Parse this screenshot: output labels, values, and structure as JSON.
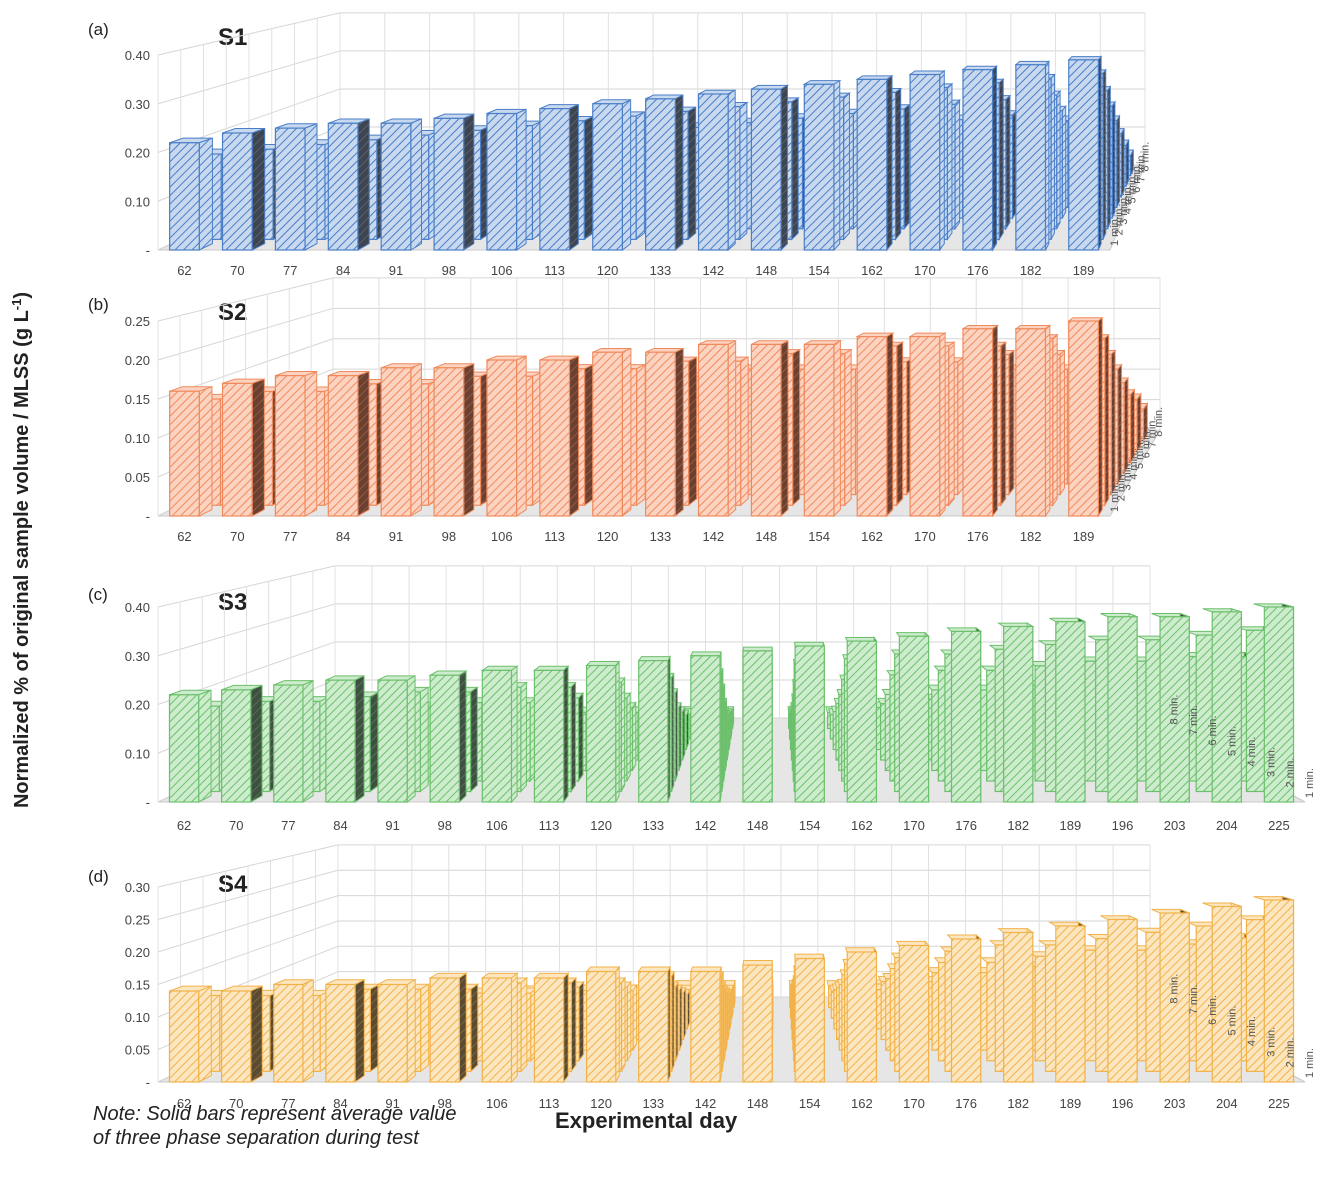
{
  "figure": {
    "ylabel": "Normalized % of original sample volume / MLSS (g L-1)",
    "ylabel_main": "Normalized % of original sample volume / MLSS (g L",
    "ylabel_sup": "-1",
    "ylabel_close": ")",
    "xlabel": "Experimental day",
    "note": "Note: Solid bars represent average value of three phase separation during test",
    "note_line1": "Note: Solid bars represent average value",
    "note_line2": "of three phase separation during test"
  },
  "chart_data": [
    {
      "type": "bar",
      "panel": "(a)",
      "title": "S1",
      "color": "#4a7fc8",
      "dark_color": "#3e4550",
      "light_color": "#c7d8ef",
      "categories": [
        "62",
        "70",
        "77",
        "84",
        "91",
        "98",
        "106",
        "113",
        "120",
        "133",
        "142",
        "148",
        "154",
        "162",
        "170",
        "176",
        "182",
        "189"
      ],
      "yticks": [
        "-",
        "0.10",
        "0.20",
        "0.30",
        "0.40"
      ],
      "ylim": [
        0,
        0.4
      ],
      "depth_labels": [
        "1 min.",
        "2 min.",
        "3 min.",
        "4 min.",
        "5 min.",
        "6 min.",
        "7 min.",
        "8 min."
      ],
      "series": [
        {
          "name": "1 min.",
          "values": [
            0.22,
            0.24,
            0.25,
            0.26,
            0.26,
            0.27,
            0.28,
            0.29,
            0.3,
            0.31,
            0.32,
            0.33,
            0.34,
            0.35,
            0.36,
            0.37,
            0.38,
            0.39
          ]
        },
        {
          "name": "2 min.",
          "values": [
            0.18,
            0.19,
            0.2,
            0.21,
            0.22,
            0.23,
            0.24,
            0.25,
            0.26,
            0.27,
            0.28,
            0.29,
            0.3,
            0.31,
            0.32,
            0.33,
            0.34,
            0.35
          ]
        },
        {
          "name": "3 min.",
          "values": [
            0.14,
            0.15,
            0.15,
            0.16,
            0.17,
            0.18,
            0.19,
            0.2,
            0.21,
            0.22,
            0.23,
            0.24,
            0.25,
            0.26,
            0.27,
            0.28,
            0.29,
            0.3
          ]
        },
        {
          "name": "4 min.",
          "values": [
            0.1,
            0.11,
            0.12,
            0.13,
            0.13,
            0.14,
            0.15,
            0.16,
            0.17,
            0.18,
            0.19,
            0.19,
            0.2,
            0.21,
            0.22,
            0.23,
            0.24,
            0.25
          ]
        },
        {
          "name": "5 min.",
          "values": [
            0.08,
            0.08,
            0.09,
            0.1,
            0.1,
            0.11,
            0.12,
            0.12,
            0.13,
            0.14,
            0.15,
            0.15,
            0.16,
            0.17,
            0.18,
            0.19,
            0.2,
            0.2
          ]
        },
        {
          "name": "6 min.",
          "values": [
            0.06,
            0.06,
            0.07,
            0.07,
            0.08,
            0.08,
            0.09,
            0.09,
            0.1,
            0.1,
            0.11,
            0.11,
            0.12,
            0.13,
            0.14,
            0.14,
            0.15,
            0.15
          ]
        },
        {
          "name": "7 min.",
          "values": [
            0.04,
            0.04,
            0.05,
            0.05,
            0.05,
            0.06,
            0.06,
            0.06,
            0.07,
            0.07,
            0.07,
            0.08,
            0.08,
            0.09,
            0.09,
            0.1,
            0.1,
            0.1
          ]
        },
        {
          "name": "8 min.",
          "values": [
            0.03,
            0.03,
            0.03,
            0.03,
            0.03,
            0.04,
            0.04,
            0.04,
            0.04,
            0.04,
            0.04,
            0.05,
            0.05,
            0.05,
            0.05,
            0.05,
            0.05,
            0.05
          ]
        }
      ]
    },
    {
      "type": "bar",
      "panel": "(b)",
      "title": "S2",
      "color": "#f08a5d",
      "dark_color": "#6a4030",
      "light_color": "#fbd3c0",
      "categories": [
        "62",
        "70",
        "77",
        "84",
        "91",
        "98",
        "106",
        "113",
        "120",
        "133",
        "142",
        "148",
        "154",
        "162",
        "170",
        "176",
        "182",
        "189"
      ],
      "yticks": [
        "-",
        "0.05",
        "0.10",
        "0.15",
        "0.20",
        "0.25"
      ],
      "ylim": [
        0,
        0.25
      ],
      "depth_labels": [
        "1 min.",
        "2 min.",
        "3 min.",
        "4 min.",
        "5 min.",
        "6 min.",
        "7 min.",
        "8 min."
      ],
      "series": [
        {
          "name": "1 min.",
          "values": [
            0.16,
            0.17,
            0.18,
            0.18,
            0.19,
            0.19,
            0.2,
            0.2,
            0.21,
            0.21,
            0.22,
            0.22,
            0.22,
            0.23,
            0.23,
            0.24,
            0.24,
            0.25
          ]
        },
        {
          "name": "2 min.",
          "values": [
            0.14,
            0.15,
            0.15,
            0.16,
            0.16,
            0.17,
            0.17,
            0.18,
            0.18,
            0.19,
            0.19,
            0.2,
            0.2,
            0.21,
            0.21,
            0.21,
            0.22,
            0.22
          ]
        },
        {
          "name": "3 min.",
          "values": [
            0.12,
            0.12,
            0.13,
            0.13,
            0.14,
            0.14,
            0.15,
            0.15,
            0.16,
            0.16,
            0.17,
            0.17,
            0.17,
            0.18,
            0.18,
            0.19,
            0.19,
            0.19
          ]
        },
        {
          "name": "4 min.",
          "values": [
            0.1,
            0.1,
            0.11,
            0.11,
            0.11,
            0.12,
            0.12,
            0.13,
            0.13,
            0.13,
            0.14,
            0.14,
            0.14,
            0.15,
            0.15,
            0.16,
            0.16,
            0.16
          ]
        },
        {
          "name": "5 min.",
          "values": [
            0.08,
            0.08,
            0.09,
            0.09,
            0.09,
            0.09,
            0.1,
            0.1,
            0.1,
            0.11,
            0.11,
            0.11,
            0.12,
            0.12,
            0.12,
            0.13,
            0.13,
            0.13
          ]
        },
        {
          "name": "6 min.",
          "values": [
            0.06,
            0.06,
            0.07,
            0.07,
            0.07,
            0.07,
            0.08,
            0.08,
            0.08,
            0.08,
            0.09,
            0.09,
            0.09,
            0.09,
            0.1,
            0.1,
            0.1,
            0.1
          ]
        },
        {
          "name": "7 min.",
          "values": [
            0.05,
            0.05,
            0.05,
            0.05,
            0.05,
            0.06,
            0.06,
            0.06,
            0.06,
            0.06,
            0.06,
            0.07,
            0.07,
            0.07,
            0.07,
            0.07,
            0.08,
            0.08
          ]
        },
        {
          "name": "8 min.",
          "values": [
            0.04,
            0.04,
            0.04,
            0.04,
            0.04,
            0.04,
            0.04,
            0.04,
            0.04,
            0.05,
            0.05,
            0.05,
            0.05,
            0.05,
            0.05,
            0.05,
            0.05,
            0.05
          ]
        }
      ]
    },
    {
      "type": "bar",
      "panel": "(c)",
      "title": "S3",
      "color": "#6cc06c",
      "dark_color": "#3e5040",
      "light_color": "#cdebcd",
      "categories": [
        "62",
        "70",
        "77",
        "84",
        "91",
        "98",
        "106",
        "113",
        "120",
        "133",
        "142",
        "148",
        "154",
        "162",
        "170",
        "176",
        "182",
        "189",
        "196",
        "203",
        "204",
        "225"
      ],
      "yticks": [
        "-",
        "0.10",
        "0.20",
        "0.30",
        "0.40"
      ],
      "ylim": [
        0,
        0.4
      ],
      "depth_labels": [
        "1 min.",
        "2 min.",
        "3 min.",
        "4 min.",
        "5 min.",
        "6 min.",
        "7 min.",
        "8 min."
      ],
      "series": [
        {
          "name": "1 min.",
          "values": [
            0.22,
            0.23,
            0.24,
            0.25,
            0.25,
            0.26,
            0.27,
            0.27,
            0.28,
            0.29,
            0.3,
            0.31,
            0.32,
            0.33,
            0.34,
            0.35,
            0.36,
            0.37,
            0.38,
            0.38,
            0.39,
            0.4
          ]
        },
        {
          "name": "2 min.",
          "values": [
            0.18,
            0.19,
            0.19,
            0.2,
            0.21,
            0.21,
            0.22,
            0.22,
            0.23,
            0.24,
            0.25,
            0.26,
            0.27,
            0.28,
            0.29,
            0.29,
            0.3,
            0.31,
            0.32,
            0.32,
            0.33,
            0.34
          ]
        },
        {
          "name": "3 min.",
          "values": [
            0.14,
            0.15,
            0.15,
            0.16,
            0.16,
            0.17,
            0.17,
            0.18,
            0.18,
            0.19,
            0.2,
            0.21,
            0.21,
            0.22,
            0.23,
            0.24,
            0.24,
            0.25,
            0.26,
            0.26,
            0.27,
            0.27
          ]
        },
        {
          "name": "4 min.",
          "values": [
            0.1,
            0.11,
            0.11,
            0.12,
            0.12,
            0.13,
            0.13,
            0.13,
            0.14,
            0.14,
            0.15,
            0.16,
            0.16,
            0.17,
            0.17,
            0.18,
            0.18,
            0.19,
            0.19,
            0.2,
            0.2,
            0.21
          ]
        },
        {
          "name": "5 min.",
          "values": [
            0.08,
            0.08,
            0.09,
            0.09,
            0.09,
            0.1,
            0.1,
            0.1,
            0.11,
            0.11,
            0.11,
            0.12,
            0.12,
            0.13,
            0.13,
            0.14,
            0.14,
            0.14,
            0.15,
            0.15,
            0.15,
            0.16
          ]
        },
        {
          "name": "6 min.",
          "values": [
            0.06,
            0.06,
            0.06,
            0.07,
            0.07,
            0.07,
            0.07,
            0.08,
            0.08,
            0.08,
            0.08,
            0.09,
            0.09,
            0.09,
            0.1,
            0.1,
            0.1,
            0.1,
            0.11,
            0.11,
            0.11,
            0.11
          ]
        },
        {
          "name": "7 min.",
          "values": [
            0.04,
            0.04,
            0.04,
            0.05,
            0.05,
            0.05,
            0.05,
            0.05,
            0.05,
            0.06,
            0.06,
            0.06,
            0.06,
            0.06,
            0.07,
            0.07,
            0.07,
            0.07,
            0.07,
            0.07,
            0.08,
            0.08
          ]
        },
        {
          "name": "8 min.",
          "values": [
            0.03,
            0.03,
            0.03,
            0.03,
            0.03,
            0.03,
            0.03,
            0.03,
            0.03,
            0.04,
            0.04,
            0.04,
            0.04,
            0.04,
            0.04,
            0.04,
            0.04,
            0.04,
            0.04,
            0.04,
            0.05,
            0.05
          ]
        }
      ]
    },
    {
      "type": "bar",
      "panel": "(d)",
      "title": "S4",
      "color": "#f2b24a",
      "dark_color": "#5a4a30",
      "light_color": "#fbe6c0",
      "categories": [
        "62",
        "70",
        "77",
        "84",
        "91",
        "98",
        "106",
        "113",
        "120",
        "133",
        "142",
        "148",
        "154",
        "162",
        "170",
        "176",
        "182",
        "189",
        "196",
        "203",
        "204",
        "225"
      ],
      "yticks": [
        "-",
        "0.05",
        "0.10",
        "0.15",
        "0.20",
        "0.25",
        "0.30"
      ],
      "ylim": [
        0,
        0.3
      ],
      "depth_labels": [
        "1 min.",
        "2 min.",
        "3 min.",
        "4 min.",
        "5 min.",
        "6 min.",
        "7 min.",
        "8 min."
      ],
      "series": [
        {
          "name": "1 min.",
          "values": [
            0.14,
            0.14,
            0.15,
            0.15,
            0.15,
            0.16,
            0.16,
            0.16,
            0.17,
            0.17,
            0.17,
            0.18,
            0.19,
            0.2,
            0.21,
            0.22,
            0.23,
            0.24,
            0.25,
            0.26,
            0.27,
            0.28
          ]
        },
        {
          "name": "2 min.",
          "values": [
            0.12,
            0.12,
            0.12,
            0.13,
            0.13,
            0.13,
            0.14,
            0.14,
            0.14,
            0.15,
            0.15,
            0.15,
            0.16,
            0.17,
            0.18,
            0.19,
            0.2,
            0.2,
            0.21,
            0.22,
            0.23,
            0.24
          ]
        },
        {
          "name": "3 min.",
          "values": [
            0.1,
            0.1,
            0.1,
            0.11,
            0.11,
            0.11,
            0.11,
            0.12,
            0.12,
            0.12,
            0.12,
            0.13,
            0.13,
            0.14,
            0.15,
            0.16,
            0.16,
            0.17,
            0.18,
            0.18,
            0.19,
            0.2
          ]
        },
        {
          "name": "4 min.",
          "values": [
            0.08,
            0.08,
            0.08,
            0.09,
            0.09,
            0.09,
            0.09,
            0.1,
            0.1,
            0.1,
            0.1,
            0.1,
            0.11,
            0.11,
            0.12,
            0.13,
            0.13,
            0.14,
            0.14,
            0.15,
            0.15,
            0.16
          ]
        },
        {
          "name": "5 min.",
          "values": [
            0.06,
            0.07,
            0.07,
            0.07,
            0.07,
            0.07,
            0.07,
            0.08,
            0.08,
            0.08,
            0.08,
            0.08,
            0.09,
            0.09,
            0.1,
            0.1,
            0.11,
            0.11,
            0.11,
            0.12,
            0.12,
            0.12
          ]
        },
        {
          "name": "6 min.",
          "values": [
            0.05,
            0.05,
            0.05,
            0.05,
            0.06,
            0.06,
            0.06,
            0.06,
            0.06,
            0.06,
            0.06,
            0.06,
            0.07,
            0.07,
            0.07,
            0.08,
            0.08,
            0.08,
            0.09,
            0.09,
            0.09,
            0.09
          ]
        },
        {
          "name": "7 min.",
          "values": [
            0.04,
            0.04,
            0.04,
            0.04,
            0.04,
            0.04,
            0.05,
            0.05,
            0.05,
            0.05,
            0.05,
            0.05,
            0.05,
            0.05,
            0.06,
            0.06,
            0.06,
            0.06,
            0.06,
            0.07,
            0.07,
            0.07
          ]
        },
        {
          "name": "8 min.",
          "values": [
            0.03,
            0.03,
            0.03,
            0.03,
            0.03,
            0.03,
            0.03,
            0.03,
            0.03,
            0.04,
            0.04,
            0.04,
            0.04,
            0.04,
            0.04,
            0.04,
            0.04,
            0.05,
            0.05,
            0.05,
            0.05,
            0.05
          ]
        }
      ]
    }
  ]
}
